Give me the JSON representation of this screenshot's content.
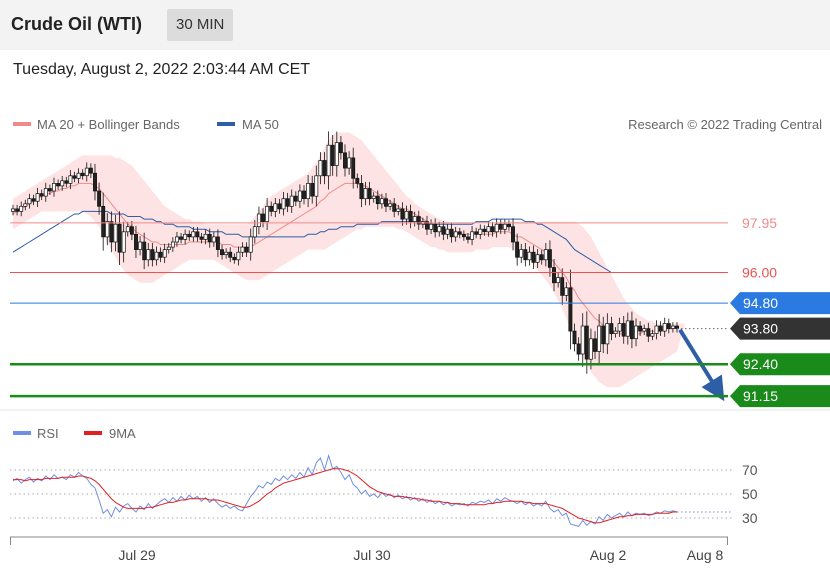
{
  "header": {
    "title": "Crude Oil (WTI)",
    "interval": "30 MIN"
  },
  "datetime": "Tuesday, August 2, 2022 2:03:44 AM CET",
  "legend": {
    "items": [
      {
        "label": "MA 20 + Bollinger Bands",
        "color": "#f08a8a"
      },
      {
        "label": "MA 50",
        "color": "#2e5ea6"
      }
    ],
    "credit": "Research © 2022 Trading Central"
  },
  "rsi_legend": {
    "items": [
      {
        "label": "RSI",
        "color": "#6f8fe0"
      },
      {
        "label": "9MA",
        "color": "#e02020"
      }
    ]
  },
  "chart_data": [
    {
      "type": "candlestick",
      "ylim": [
        90.8,
        101.4
      ],
      "xticks": [
        "Jul 29",
        "Jul 30",
        "Aug 2",
        "Aug 8"
      ],
      "levels": [
        {
          "value": 97.95,
          "label": "97.95",
          "style": "resistance",
          "color": "#f08a8a"
        },
        {
          "value": 96.0,
          "label": "96.00",
          "style": "resistance",
          "color": "#f05050"
        },
        {
          "value": 94.8,
          "label": "94.80",
          "style": "pivot",
          "color": "#2a7ae2"
        },
        {
          "value": 93.8,
          "label": "93.80",
          "style": "last",
          "color": "#333333"
        },
        {
          "value": 92.4,
          "label": "92.40",
          "style": "support",
          "color": "#1a8a1a"
        },
        {
          "value": 91.15,
          "label": "91.15",
          "style": "support",
          "color": "#1a8a1a"
        }
      ],
      "close": [
        98.5,
        98.4,
        98.6,
        98.7,
        98.9,
        98.8,
        99.1,
        99.0,
        99.3,
        99.2,
        99.5,
        99.4,
        99.6,
        99.5,
        99.8,
        99.7,
        99.9,
        99.8,
        100.1,
        99.9,
        99.2,
        98.6,
        97.4,
        98.0,
        97.2,
        97.9,
        96.8,
        97.6,
        97.8,
        97.5,
        96.9,
        97.2,
        96.5,
        96.9,
        96.5,
        96.8,
        96.6,
        96.9,
        97.0,
        97.2,
        97.4,
        97.3,
        97.5,
        97.4,
        97.6,
        97.4,
        97.3,
        97.5,
        97.2,
        97.4,
        96.9,
        96.7,
        96.8,
        96.6,
        96.5,
        96.8,
        97.0,
        96.8,
        97.4,
        97.8,
        98.3,
        98.0,
        98.6,
        98.4,
        98.7,
        98.5,
        98.9,
        98.6,
        99.0,
        98.8,
        99.2,
        98.9,
        99.5,
        99.0,
        99.8,
        100.4,
        99.8,
        101.0,
        100.2,
        101.1,
        100.7,
        100.1,
        100.5,
        99.7,
        99.5,
        98.9,
        99.3,
        98.9,
        99.0,
        98.7,
        98.9,
        98.6,
        98.7,
        98.4,
        98.5,
        98.1,
        98.4,
        98.0,
        98.2,
        97.9,
        98.0,
        97.7,
        97.9,
        97.6,
        97.8,
        97.5,
        97.7,
        97.4,
        97.6,
        97.5,
        97.4,
        97.3,
        97.6,
        97.5,
        97.7,
        97.6,
        97.8,
        97.6,
        97.9,
        97.7,
        97.9,
        97.8,
        97.2,
        96.6,
        96.9,
        96.5,
        96.8,
        96.4,
        96.7,
        96.5,
        96.9,
        96.2,
        95.6,
        95.8,
        95.1,
        95.4,
        93.7,
        93.2,
        92.8,
        93.9,
        92.6,
        93.4,
        92.9,
        93.9,
        93.2,
        94.0,
        93.6,
        93.7,
        94.0,
        93.5,
        94.1,
        93.4,
        93.9,
        93.7,
        93.8,
        93.5,
        93.6,
        93.9,
        93.7,
        94.0,
        93.8,
        93.9,
        93.8
      ],
      "ma20": [
        98.3,
        98.4,
        98.5,
        98.6,
        98.7,
        98.8,
        98.9,
        99.0,
        99.1,
        99.1,
        99.2,
        99.2,
        99.3,
        99.3,
        99.4,
        99.4,
        99.5,
        99.5,
        99.5,
        99.5,
        99.4,
        99.3,
        99.1,
        98.9,
        98.7,
        98.5,
        98.3,
        98.1,
        97.9,
        97.8,
        97.6,
        97.5,
        97.4,
        97.3,
        97.2,
        97.2,
        97.1,
        97.1,
        97.1,
        97.1,
        97.1,
        97.1,
        97.1,
        97.2,
        97.2,
        97.2,
        97.2,
        97.2,
        97.2,
        97.2,
        97.2,
        97.1,
        97.1,
        97.1,
        97.0,
        97.0,
        97.0,
        97.0,
        97.0,
        97.1,
        97.2,
        97.3,
        97.4,
        97.5,
        97.6,
        97.7,
        97.8,
        97.9,
        98.0,
        98.1,
        98.2,
        98.3,
        98.4,
        98.5,
        98.6,
        98.8,
        98.9,
        99.1,
        99.2,
        99.3,
        99.4,
        99.5,
        99.5,
        99.5,
        99.5,
        99.4,
        99.4,
        99.3,
        99.2,
        99.1,
        99.0,
        98.9,
        98.8,
        98.7,
        98.6,
        98.5,
        98.5,
        98.4,
        98.3,
        98.2,
        98.1,
        98.0,
        97.9,
        97.8,
        97.8,
        97.7,
        97.6,
        97.6,
        97.5,
        97.5,
        97.5,
        97.5,
        97.5,
        97.5,
        97.5,
        97.5,
        97.5,
        97.5,
        97.6,
        97.6,
        97.6,
        97.6,
        97.5,
        97.4,
        97.4,
        97.3,
        97.2,
        97.1,
        97.0,
        96.9,
        96.8,
        96.6,
        96.4,
        96.2,
        96.0,
        95.8,
        95.5,
        95.3,
        95.0,
        94.8,
        94.6,
        94.4,
        94.2,
        94.1,
        93.9,
        93.8,
        93.7,
        93.7,
        93.6,
        93.6,
        93.6,
        93.6,
        93.6,
        93.6,
        93.7,
        93.7,
        93.7,
        93.7,
        93.7,
        93.8,
        93.8,
        93.8,
        93.8
      ],
      "bb_upper": [
        98.9,
        99.0,
        99.1,
        99.2,
        99.3,
        99.4,
        99.5,
        99.6,
        99.7,
        99.8,
        99.9,
        100.0,
        100.1,
        100.2,
        100.3,
        100.4,
        100.5,
        100.6,
        100.6,
        100.6,
        100.6,
        100.6,
        100.6,
        100.6,
        100.6,
        100.5,
        100.5,
        100.4,
        100.3,
        100.2,
        100.0,
        99.8,
        99.6,
        99.4,
        99.2,
        99.0,
        98.8,
        98.6,
        98.5,
        98.4,
        98.3,
        98.2,
        98.1,
        98.1,
        98.0,
        98.0,
        98.0,
        97.9,
        97.9,
        97.9,
        97.9,
        97.9,
        97.9,
        97.9,
        97.9,
        97.9,
        97.9,
        97.9,
        98.0,
        98.2,
        98.4,
        98.6,
        98.8,
        99.0,
        99.1,
        99.2,
        99.3,
        99.4,
        99.5,
        99.6,
        99.7,
        99.8,
        99.9,
        100.1,
        100.3,
        100.6,
        100.9,
        101.2,
        101.4,
        101.5,
        101.5,
        101.5,
        101.5,
        101.4,
        101.3,
        101.2,
        101.0,
        100.8,
        100.6,
        100.4,
        100.2,
        100.0,
        99.8,
        99.6,
        99.4,
        99.2,
        99.0,
        98.9,
        98.7,
        98.6,
        98.5,
        98.4,
        98.3,
        98.2,
        98.1,
        98.0,
        98.0,
        97.9,
        97.9,
        97.9,
        97.9,
        97.9,
        97.9,
        97.9,
        97.9,
        97.9,
        97.9,
        97.9,
        97.9,
        98.0,
        98.0,
        98.0,
        98.0,
        98.0,
        98.0,
        98.0,
        98.0,
        98.0,
        98.0,
        98.0,
        98.0,
        98.0,
        98.0,
        98.0,
        98.0,
        98.0,
        98.0,
        98.0,
        97.9,
        97.8,
        97.6,
        97.4,
        97.1,
        96.8,
        96.5,
        96.2,
        95.9,
        95.6,
        95.3,
        95.0,
        94.8,
        94.6,
        94.4,
        94.3,
        94.2,
        94.1,
        94.1,
        94.0,
        94.0,
        94.0,
        94.0,
        94.0,
        94.0,
        94.0,
        94.0
      ],
      "bb_lower": [
        97.7,
        97.8,
        97.9,
        98.0,
        98.1,
        98.2,
        98.3,
        98.4,
        98.4,
        98.4,
        98.4,
        98.4,
        98.4,
        98.4,
        98.4,
        98.4,
        98.4,
        98.4,
        98.3,
        98.2,
        98.0,
        97.8,
        97.5,
        97.2,
        96.9,
        96.6,
        96.3,
        96.1,
        95.9,
        95.8,
        95.7,
        95.6,
        95.6,
        95.6,
        95.6,
        95.7,
        95.8,
        95.9,
        96.0,
        96.1,
        96.2,
        96.3,
        96.4,
        96.5,
        96.5,
        96.5,
        96.5,
        96.5,
        96.5,
        96.5,
        96.4,
        96.3,
        96.2,
        96.1,
        96.0,
        95.9,
        95.8,
        95.7,
        95.7,
        95.7,
        95.7,
        95.8,
        95.9,
        96.0,
        96.1,
        96.2,
        96.3,
        96.4,
        96.5,
        96.6,
        96.7,
        96.8,
        96.9,
        96.9,
        96.9,
        96.9,
        96.9,
        97.0,
        97.1,
        97.2,
        97.3,
        97.4,
        97.5,
        97.6,
        97.7,
        97.7,
        97.8,
        97.8,
        97.8,
        97.8,
        97.8,
        97.8,
        97.8,
        97.8,
        97.7,
        97.7,
        97.6,
        97.5,
        97.4,
        97.3,
        97.2,
        97.1,
        97.0,
        97.0,
        96.9,
        96.9,
        96.8,
        96.8,
        96.8,
        96.8,
        96.8,
        96.8,
        96.8,
        96.9,
        96.9,
        96.9,
        96.9,
        97.0,
        97.0,
        97.0,
        97.0,
        97.0,
        96.9,
        96.8,
        96.7,
        96.6,
        96.5,
        96.3,
        96.1,
        95.9,
        95.7,
        95.5,
        95.2,
        94.9,
        94.6,
        94.2,
        93.8,
        93.4,
        93.0,
        92.7,
        92.4,
        92.1,
        91.9,
        91.7,
        91.6,
        91.5,
        91.5,
        91.5,
        91.5,
        91.6,
        91.7,
        91.8,
        91.9,
        92.0,
        92.1,
        92.2,
        92.3,
        92.4,
        92.5,
        92.6,
        92.7,
        92.8,
        92.9
      ],
      "ma50": [
        96.8,
        96.9,
        97.0,
        97.1,
        97.2,
        97.3,
        97.4,
        97.5,
        97.6,
        97.7,
        97.8,
        97.9,
        98.0,
        98.1,
        98.2,
        98.3,
        98.3,
        98.4,
        98.4,
        98.4,
        98.4,
        98.4,
        98.4,
        98.4,
        98.3,
        98.3,
        98.3,
        98.3,
        98.2,
        98.2,
        98.2,
        98.2,
        98.1,
        98.1,
        98.1,
        98.0,
        98.0,
        97.9,
        97.9,
        97.9,
        97.8,
        97.8,
        97.8,
        97.8,
        97.7,
        97.7,
        97.7,
        97.7,
        97.6,
        97.6,
        97.6,
        97.6,
        97.5,
        97.5,
        97.5,
        97.5,
        97.4,
        97.4,
        97.4,
        97.4,
        97.4,
        97.4,
        97.4,
        97.4,
        97.4,
        97.4,
        97.4,
        97.4,
        97.4,
        97.4,
        97.4,
        97.4,
        97.5,
        97.5,
        97.5,
        97.6,
        97.6,
        97.7,
        97.7,
        97.7,
        97.8,
        97.8,
        97.8,
        97.8,
        97.9,
        97.9,
        97.9,
        97.9,
        97.9,
        97.9,
        98.0,
        98.0,
        98.0,
        98.0,
        98.0,
        98.0,
        98.0,
        98.0,
        98.0,
        98.0,
        97.9,
        97.9,
        97.9,
        97.9,
        97.9,
        97.9,
        97.9,
        97.9,
        97.9,
        97.9,
        97.9,
        97.9,
        97.9,
        98.0,
        98.0,
        98.0,
        98.0,
        98.1,
        98.1,
        98.1,
        98.1,
        98.1,
        98.1,
        98.1,
        98.1,
        98.0,
        98.0,
        98.0,
        97.9,
        97.9,
        97.8,
        97.7,
        97.6,
        97.5,
        97.4,
        97.3,
        97.1,
        96.9,
        96.8,
        96.7,
        96.6,
        96.5,
        96.4,
        96.3,
        96.2,
        96.1,
        96.0,
        96.0,
        96.0,
        96.0,
        96.0,
        96.0,
        96.0,
        96.0,
        96.0,
        96.0,
        96.0,
        96.0,
        96.0,
        96.0,
        96.0,
        96.0,
        96.0,
        96.0,
        96.0,
        96.0,
        96.0
      ]
    },
    {
      "type": "line",
      "title": "RSI",
      "ylim": [
        20,
        85
      ],
      "yticks": [
        30,
        50,
        70
      ],
      "rsi": [
        61,
        63,
        59,
        62,
        64,
        60,
        63,
        61,
        65,
        62,
        66,
        63,
        64,
        62,
        66,
        64,
        68,
        65,
        63,
        58,
        55,
        45,
        34,
        37,
        31,
        39,
        35,
        40,
        42,
        38,
        35,
        40,
        37,
        42,
        38,
        41,
        44,
        46,
        43,
        47,
        44,
        48,
        45,
        49,
        46,
        48,
        44,
        47,
        43,
        46,
        42,
        39,
        41,
        38,
        40,
        37,
        36,
        42,
        48,
        52,
        57,
        55,
        60,
        58,
        63,
        61,
        65,
        62,
        66,
        63,
        68,
        64,
        72,
        66,
        76,
        80,
        70,
        82,
        71,
        73,
        68,
        62,
        66,
        58,
        55,
        50,
        53,
        48,
        50,
        47,
        51,
        48,
        50,
        47,
        49,
        46,
        48,
        45,
        47,
        44,
        46,
        43,
        45,
        42,
        44,
        41,
        43,
        40,
        42,
        41,
        42,
        40,
        43,
        42,
        44,
        43,
        45,
        42,
        46,
        44,
        47,
        45,
        44,
        42,
        44,
        41,
        43,
        40,
        42,
        40,
        44,
        38,
        35,
        37,
        32,
        34,
        25,
        24,
        23,
        28,
        24,
        27,
        25,
        31,
        28,
        33,
        30,
        32,
        34,
        31,
        35,
        32,
        34,
        33,
        34,
        32,
        33,
        35,
        34,
        36,
        35,
        36,
        35
      ],
      "ma9": [
        62,
        62,
        62,
        61,
        62,
        62,
        62,
        62,
        63,
        63,
        63,
        63,
        64,
        64,
        64,
        64,
        65,
        65,
        64,
        63,
        61,
        58,
        54,
        50,
        46,
        43,
        41,
        39,
        38,
        38,
        38,
        38,
        38,
        39,
        39,
        40,
        41,
        42,
        43,
        43,
        44,
        45,
        45,
        46,
        46,
        46,
        46,
        46,
        45,
        45,
        45,
        44,
        43,
        42,
        41,
        40,
        39,
        39,
        40,
        42,
        44,
        47,
        50,
        52,
        55,
        57,
        59,
        60,
        61,
        62,
        63,
        64,
        65,
        66,
        67,
        68,
        69,
        70,
        71,
        71,
        71,
        70,
        69,
        67,
        65,
        62,
        59,
        56,
        54,
        52,
        51,
        50,
        49,
        48,
        48,
        48,
        47,
        47,
        46,
        46,
        45,
        45,
        44,
        44,
        44,
        43,
        43,
        42,
        42,
        42,
        41,
        41,
        41,
        41,
        41,
        41,
        42,
        42,
        43,
        43,
        44,
        44,
        44,
        44,
        44,
        43,
        43,
        42,
        42,
        42,
        42,
        41,
        40,
        39,
        38,
        36,
        34,
        32,
        30,
        29,
        28,
        27,
        26,
        26,
        27,
        28,
        29,
        30,
        31,
        31,
        32,
        32,
        33,
        33,
        33,
        33,
        33,
        34,
        34,
        34,
        34,
        35,
        35
      ]
    }
  ]
}
